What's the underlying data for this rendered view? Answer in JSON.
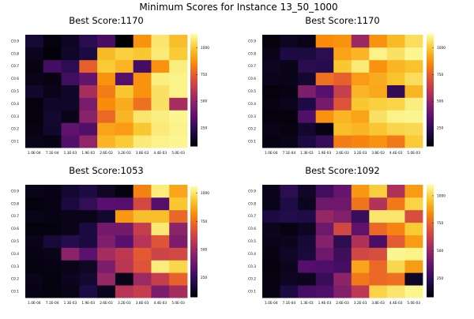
{
  "figure": {
    "suptitle": "Minimum Scores for Instance 13_50_1000"
  },
  "chart_data": [
    {
      "type": "heatmap",
      "title": "Best Score:1170",
      "x_categories": [
        "1.0E-04",
        "7.1E-04",
        "1.3E-03",
        "1.9E-03",
        "2.6E-03",
        "3.2E-03",
        "3.8E-03",
        "4.4E-03",
        "5.0E-03"
      ],
      "y_categories": [
        "C0.1",
        "C0.2",
        "C0.3",
        "C0.4",
        "C0.5",
        "C0.6",
        "C0.7",
        "C0.8",
        "C0.9"
      ],
      "colorbar_ticks": [
        250,
        500,
        750,
        1000
      ],
      "zlim": [
        80,
        1130
      ],
      "colormap": "inferno",
      "values": [
        [
          120,
          110,
          330,
          500,
          960,
          1010,
          1080,
          1100,
          1110
        ],
        [
          110,
          160,
          370,
          330,
          920,
          900,
          1000,
          1080,
          1100
        ],
        [
          100,
          170,
          120,
          480,
          780,
          960,
          1070,
          1090,
          1110
        ],
        [
          100,
          150,
          150,
          440,
          870,
          940,
          800,
          1060,
          560
        ],
        [
          160,
          120,
          150,
          560,
          830,
          1000,
          880,
          1060,
          1100
        ],
        [
          120,
          110,
          290,
          380,
          880,
          340,
          880,
          1090,
          1100
        ],
        [
          110,
          300,
          250,
          760,
          1010,
          960,
          300,
          880,
          1090
        ],
        [
          130,
          90,
          150,
          200,
          970,
          1020,
          1000,
          1080,
          1010
        ],
        [
          180,
          100,
          140,
          240,
          310,
          80,
          880,
          1070,
          980
        ]
      ]
    },
    {
      "type": "heatmap",
      "title": "Best Score:1170",
      "x_categories": [
        "1.0E-04",
        "7.1E-04",
        "1.3E-03",
        "1.9E-03",
        "2.6E-03",
        "3.2E-03",
        "3.8E-03",
        "4.4E-03",
        "5.0E-03"
      ],
      "y_categories": [
        "C0.1",
        "C0.2",
        "C0.3",
        "C0.4",
        "C0.5",
        "C0.6",
        "C0.7",
        "C0.8",
        "C0.9"
      ],
      "colorbar_ticks": [
        250,
        500,
        750,
        1000
      ],
      "zlim": [
        80,
        1130
      ],
      "colormap": "inferno",
      "values": [
        [
          110,
          120,
          200,
          270,
          830,
          850,
          880,
          820,
          1010
        ],
        [
          120,
          110,
          160,
          110,
          980,
          960,
          1000,
          1030,
          1040
        ],
        [
          100,
          100,
          330,
          880,
          960,
          920,
          1060,
          1100,
          1110
        ],
        [
          110,
          130,
          210,
          430,
          720,
          1000,
          1020,
          1030,
          1090
        ],
        [
          100,
          110,
          450,
          350,
          640,
          960,
          930,
          260,
          960
        ],
        [
          130,
          120,
          170,
          800,
          760,
          900,
          940,
          990,
          1050
        ],
        [
          140,
          120,
          240,
          230,
          1000,
          1080,
          880,
          960,
          990
        ],
        [
          120,
          210,
          200,
          250,
          920,
          960,
          1100,
          1060,
          1110
        ],
        [
          100,
          140,
          120,
          870,
          880,
          520,
          880,
          970,
          1050
        ]
      ]
    },
    {
      "type": "heatmap",
      "title": "Best Score:1053",
      "x_categories": [
        "1.0E-04",
        "7.1E-04",
        "1.3E-03",
        "1.9E-03",
        "2.6E-03",
        "3.2E-03",
        "3.8E-03",
        "4.4E-03",
        "5.0E-03"
      ],
      "y_categories": [
        "C0.1",
        "C0.2",
        "C0.3",
        "C0.4",
        "C0.5",
        "C0.6",
        "C0.7",
        "C0.8",
        "C0.9"
      ],
      "colorbar_ticks": [
        250,
        500,
        750,
        1000
      ],
      "zlim": [
        80,
        1060
      ],
      "colormap": "inferno",
      "values": [
        [
          110,
          100,
          120,
          200,
          130,
          560,
          600,
          420,
          520
        ],
        [
          120,
          100,
          130,
          160,
          480,
          120,
          500,
          600,
          720
        ],
        [
          100,
          110,
          120,
          140,
          420,
          570,
          680,
          1020,
          970
        ],
        [
          110,
          120,
          460,
          340,
          520,
          580,
          700,
          620,
          640
        ],
        [
          120,
          180,
          220,
          190,
          430,
          330,
          560,
          680,
          420
        ],
        [
          100,
          100,
          120,
          190,
          400,
          400,
          600,
          1010,
          460
        ],
        [
          120,
          110,
          120,
          120,
          160,
          840,
          920,
          920,
          730
        ],
        [
          100,
          110,
          190,
          250,
          330,
          320,
          640,
          320,
          940
        ],
        [
          120,
          110,
          160,
          200,
          140,
          100,
          790,
          1020,
          870
        ]
      ]
    },
    {
      "type": "heatmap",
      "title": "Best Score:1092",
      "x_categories": [
        "1.0E-04",
        "7.1E-04",
        "1.3E-03",
        "1.9E-03",
        "2.6E-03",
        "3.2E-03",
        "3.8E-03",
        "4.4E-03",
        "5.0E-03"
      ],
      "y_categories": [
        "C0.1",
        "C0.2",
        "C0.3",
        "C0.4",
        "C0.5",
        "C0.6",
        "C0.7",
        "C0.8",
        "C0.9"
      ],
      "colorbar_ticks": [
        250,
        500,
        750,
        1000
      ],
      "zlim": [
        80,
        1100
      ],
      "colormap": "inferno",
      "values": [
        [
          110,
          200,
          300,
          320,
          450,
          600,
          1000,
          1040,
          1080
        ],
        [
          110,
          140,
          130,
          270,
          480,
          800,
          760,
          780,
          150
        ],
        [
          100,
          130,
          330,
          320,
          300,
          900,
          760,
          1010,
          880
        ],
        [
          110,
          150,
          190,
          400,
          280,
          660,
          680,
          1080,
          1070
        ],
        [
          120,
          130,
          180,
          460,
          240,
          560,
          310,
          730,
          880
        ],
        [
          130,
          110,
          140,
          400,
          660,
          360,
          760,
          820,
          980
        ],
        [
          200,
          220,
          210,
          500,
          450,
          270,
          1040,
          1040,
          680
        ],
        [
          120,
          210,
          130,
          400,
          400,
          790,
          570,
          800,
          1000
        ],
        [
          120,
          240,
          150,
          290,
          380,
          870,
          990,
          560,
          880
        ]
      ]
    }
  ]
}
